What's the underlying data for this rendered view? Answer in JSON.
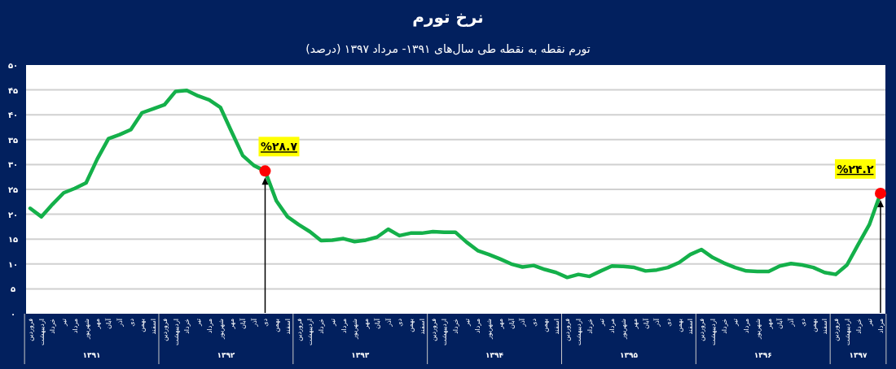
{
  "chart_data": {
    "type": "line",
    "title": "نرخ تورم",
    "subtitle": "تورم نقطه به نقطه طی سال‌های ۱۳۹۱- مرداد ۱۳۹۷ (درصد)",
    "categories": [
      "فروردین",
      "اردیبهشت",
      "خرداد",
      "تیر",
      "مرداد",
      "شهریور",
      "مهر",
      "آبان",
      "آذر",
      "دی",
      "بهمن",
      "اسفند",
      "فروردین",
      "اردیبهشت",
      "خرداد",
      "تیر",
      "مرداد",
      "شهریور",
      "مهر",
      "آبان",
      "آذر",
      "دی",
      "بهمن",
      "اسفند",
      "فروردین",
      "اردیبهشت",
      "خرداد",
      "تیر",
      "مرداد",
      "شهریور",
      "مهر",
      "آبان",
      "آذر",
      "دی",
      "بهمن",
      "اسفند",
      "فروردین",
      "اردیبهشت",
      "خرداد",
      "تیر",
      "مرداد",
      "شهریور",
      "مهر",
      "آبان",
      "آذر",
      "دی",
      "بهمن",
      "اسفند",
      "فروردین",
      "اردیبهشت",
      "خرداد",
      "تیر",
      "مرداد",
      "شهریور",
      "مهر",
      "آبان",
      "آذر",
      "دی",
      "بهمن",
      "اسفند",
      "فروردین",
      "اردیبهشت",
      "خرداد",
      "تیر",
      "مرداد",
      "شهریور",
      "مهر",
      "آبان",
      "آذر",
      "دی",
      "بهمن",
      "اسفند",
      "فروردین",
      "اردیبهشت",
      "خرداد",
      "تیر",
      "مرداد"
    ],
    "series": [
      {
        "color": "#14b04a",
        "values": [
          21.2,
          19.5,
          22,
          24.3,
          25.2,
          26.3,
          31.1,
          35.2,
          36,
          37,
          40.4,
          41.2,
          42,
          44.7,
          44.9,
          43.8,
          43,
          41.5,
          36.6,
          31.8,
          29.8,
          28.7,
          22.7,
          19.5,
          17.9,
          16.5,
          14.7,
          14.8,
          15.1,
          14.5,
          14.8,
          15.4,
          17,
          15.7,
          16.2,
          16.2,
          16.5,
          16.4,
          16.4,
          14.4,
          12.7,
          11.9,
          11,
          10,
          9.4,
          9.7,
          8.9,
          8.3,
          7.3,
          7.9,
          7.5,
          8.6,
          9.6,
          9.5,
          9.3,
          8.6,
          8.8,
          9.3,
          10.3,
          11.9,
          12.9,
          11.3,
          10.2,
          9.3,
          8.6,
          8.5,
          8.5,
          9.6,
          10.1,
          9.8,
          9.3,
          8.3,
          7.9,
          9.8,
          13.9,
          17.9,
          24.2
        ]
      },
      {
        "type": "scatter",
        "color": "#ff0000",
        "marker": "circle",
        "values": [
          null,
          null,
          null,
          null,
          null,
          null,
          null,
          null,
          null,
          null,
          null,
          null,
          null,
          null,
          null,
          null,
          null,
          null,
          null,
          null,
          null,
          28.7,
          null,
          null,
          null,
          null,
          null,
          null,
          null,
          null,
          null,
          null,
          null,
          null,
          null,
          null,
          null,
          null,
          null,
          null,
          null,
          null,
          null,
          null,
          null,
          null,
          null,
          null,
          null,
          null,
          null,
          null,
          null,
          null,
          null,
          null,
          null,
          null,
          null,
          null,
          null,
          null,
          null,
          null,
          null,
          null,
          null,
          null,
          null,
          null,
          null,
          null,
          null,
          null,
          null,
          null,
          24.2
        ],
        "value_labels": [
          null,
          null,
          null,
          null,
          null,
          null,
          null,
          null,
          null,
          null,
          null,
          null,
          null,
          null,
          null,
          null,
          null,
          null,
          null,
          null,
          null,
          "%۲۸.۷",
          null,
          null,
          null,
          null,
          null,
          null,
          null,
          null,
          null,
          null,
          null,
          null,
          null,
          null,
          null,
          null,
          null,
          null,
          null,
          null,
          null,
          null,
          null,
          null,
          null,
          null,
          null,
          null,
          null,
          null,
          null,
          null,
          null,
          null,
          null,
          null,
          null,
          null,
          null,
          null,
          null,
          null,
          null,
          null,
          null,
          null,
          null,
          null,
          null,
          null,
          null,
          null,
          null,
          null,
          "%۲۴.۲"
        ]
      }
    ],
    "ylim": [
      0,
      50
    ],
    "yticks": [
      {
        "value": 0,
        "label": "۰"
      },
      {
        "value": 5,
        "label": "۵"
      },
      {
        "value": 10,
        "label": "۱۰"
      },
      {
        "value": 15,
        "label": "۱۵"
      },
      {
        "value": 20,
        "label": "۲۰"
      },
      {
        "value": 25,
        "label": "۲۵"
      },
      {
        "value": 30,
        "label": "۳۰"
      },
      {
        "value": 35,
        "label": "۳۵"
      },
      {
        "value": 40,
        "label": "۴۰"
      },
      {
        "value": 45,
        "label": "۴۵"
      },
      {
        "value": 50,
        "label": "۵۰"
      }
    ],
    "grid": "y",
    "annotations": [
      "۱۳۹۱",
      "۱۳۹۲",
      "۱۳۹۳",
      "۱۳۹۴",
      "۱۳۹۵",
      "۱۳۹۶",
      "۱۳۹۷"
    ]
  }
}
